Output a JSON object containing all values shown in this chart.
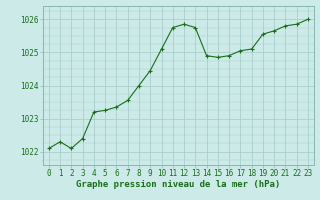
{
  "x": [
    0,
    1,
    2,
    3,
    4,
    5,
    6,
    7,
    8,
    9,
    10,
    11,
    12,
    13,
    14,
    15,
    16,
    17,
    18,
    19,
    20,
    21,
    22,
    23
  ],
  "y": [
    1022.1,
    1022.3,
    1022.1,
    1022.4,
    1023.2,
    1023.25,
    1023.35,
    1023.55,
    1024.0,
    1024.45,
    1025.1,
    1025.75,
    1025.85,
    1025.75,
    1024.9,
    1024.85,
    1024.9,
    1025.05,
    1025.1,
    1025.55,
    1025.65,
    1025.8,
    1025.85,
    1026.0
  ],
  "line_color": "#1a6e1a",
  "marker": "+",
  "marker_color": "#1a6e1a",
  "bg_color": "#cceae8",
  "grid_color": "#aacfcc",
  "border_color": "#88b8b4",
  "xlabel": "Graphe pression niveau de la mer (hPa)",
  "xlabel_color": "#1a6e1a",
  "tick_label_color": "#1a6e1a",
  "ylim": [
    1021.6,
    1026.4
  ],
  "yticks": [
    1022,
    1023,
    1024,
    1025,
    1026
  ],
  "xticks": [
    0,
    1,
    2,
    3,
    4,
    5,
    6,
    7,
    8,
    9,
    10,
    11,
    12,
    13,
    14,
    15,
    16,
    17,
    18,
    19,
    20,
    21,
    22,
    23
  ],
  "xlabel_fontsize": 6.5,
  "tick_fontsize": 5.5,
  "ytick_fontsize": 5.5
}
